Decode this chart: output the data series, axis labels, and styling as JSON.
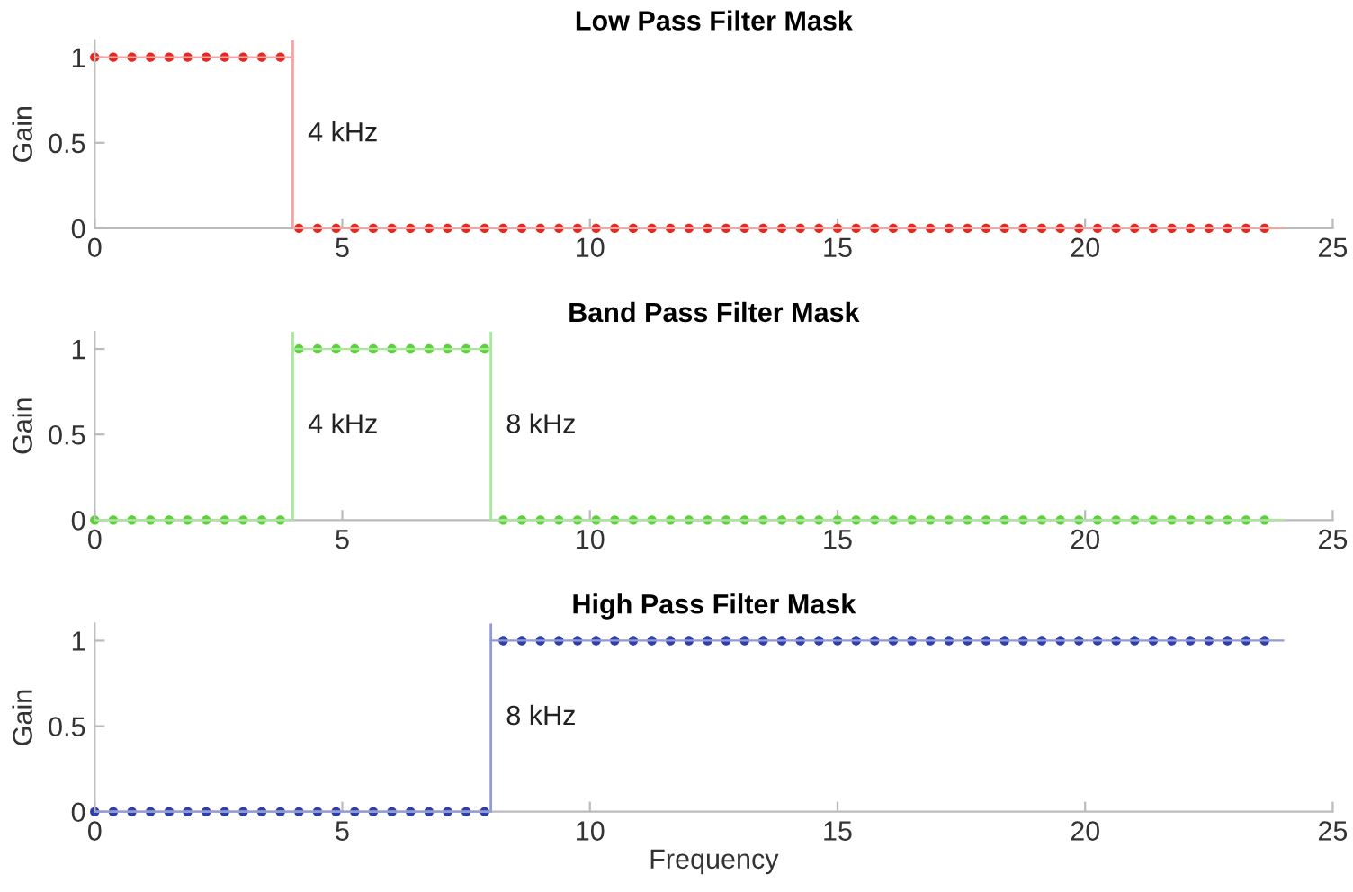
{
  "chart_data": [
    {
      "type": "scatter",
      "title": "Low Pass Filter Mask",
      "ylabel": "Gain",
      "xlim": [
        0,
        25
      ],
      "xticks": [
        0,
        5,
        10,
        15,
        20,
        25
      ],
      "ylim": [
        0,
        1.1
      ],
      "yticks": [
        0,
        0.5,
        1
      ],
      "grid": false,
      "legend": false,
      "x": [
        0,
        0.375,
        0.75,
        1.125,
        1.5,
        1.875,
        2.25,
        2.625,
        3,
        3.375,
        3.75,
        4.125,
        4.5,
        4.875,
        5.25,
        5.625,
        6,
        6.375,
        6.75,
        7.125,
        7.5,
        7.875,
        8.25,
        8.625,
        9,
        9.375,
        9.75,
        10.125,
        10.5,
        10.875,
        11.25,
        11.625,
        12,
        12.375,
        12.75,
        13.125,
        13.5,
        13.875,
        14.25,
        14.625,
        15,
        15.375,
        15.75,
        16.125,
        16.5,
        16.875,
        17.25,
        17.625,
        18,
        18.375,
        18.75,
        19.125,
        19.5,
        19.875,
        20.25,
        20.625,
        21,
        21.375,
        21.75,
        22.125,
        22.5,
        22.875,
        23.25,
        23.625
      ],
      "series": [
        {
          "type": "line",
          "color": "#f5a3a3",
          "x": [
            0,
            4
          ],
          "values": [
            1,
            1
          ]
        },
        {
          "type": "line",
          "color": "#f5a3a3",
          "x": [
            4,
            24
          ],
          "values": [
            0,
            0
          ]
        },
        {
          "color": "#e8281e",
          "marker": "circle",
          "values": [
            1,
            1,
            1,
            1,
            1,
            1,
            1,
            1,
            1,
            1,
            1,
            0,
            0,
            0,
            0,
            0,
            0,
            0,
            0,
            0,
            0,
            0,
            0,
            0,
            0,
            0,
            0,
            0,
            0,
            0,
            0,
            0,
            0,
            0,
            0,
            0,
            0,
            0,
            0,
            0,
            0,
            0,
            0,
            0,
            0,
            0,
            0,
            0,
            0,
            0,
            0,
            0,
            0,
            0,
            0,
            0,
            0,
            0,
            0,
            0,
            0,
            0,
            0,
            0
          ]
        }
      ],
      "ref_lines": [
        {
          "axis": "x",
          "value": 4,
          "label": "4 kHz",
          "color": "#f5a3a3"
        }
      ]
    },
    {
      "type": "scatter",
      "title": "Band Pass Filter Mask",
      "ylabel": "Gain",
      "xlim": [
        0,
        25
      ],
      "xticks": [
        0,
        5,
        10,
        15,
        20,
        25
      ],
      "ylim": [
        0,
        1.1
      ],
      "yticks": [
        0,
        0.5,
        1
      ],
      "grid": false,
      "legend": false,
      "x": [
        0,
        0.375,
        0.75,
        1.125,
        1.5,
        1.875,
        2.25,
        2.625,
        3,
        3.375,
        3.75,
        4.125,
        4.5,
        4.875,
        5.25,
        5.625,
        6,
        6.375,
        6.75,
        7.125,
        7.5,
        7.875,
        8.25,
        8.625,
        9,
        9.375,
        9.75,
        10.125,
        10.5,
        10.875,
        11.25,
        11.625,
        12,
        12.375,
        12.75,
        13.125,
        13.5,
        13.875,
        14.25,
        14.625,
        15,
        15.375,
        15.75,
        16.125,
        16.5,
        16.875,
        17.25,
        17.625,
        18,
        18.375,
        18.75,
        19.125,
        19.5,
        19.875,
        20.25,
        20.625,
        21,
        21.375,
        21.75,
        22.125,
        22.5,
        22.875,
        23.25,
        23.625
      ],
      "series": [
        {
          "type": "line",
          "color": "#a8e89a",
          "x": [
            0,
            4
          ],
          "values": [
            0,
            0
          ]
        },
        {
          "type": "line",
          "color": "#a8e89a",
          "x": [
            4,
            8
          ],
          "values": [
            1,
            1
          ]
        },
        {
          "type": "line",
          "color": "#a8e89a",
          "x": [
            8,
            24
          ],
          "values": [
            0,
            0
          ]
        },
        {
          "color": "#5cd13a",
          "marker": "circle",
          "values": [
            0,
            0,
            0,
            0,
            0,
            0,
            0,
            0,
            0,
            0,
            0,
            1,
            1,
            1,
            1,
            1,
            1,
            1,
            1,
            1,
            1,
            1,
            0,
            0,
            0,
            0,
            0,
            0,
            0,
            0,
            0,
            0,
            0,
            0,
            0,
            0,
            0,
            0,
            0,
            0,
            0,
            0,
            0,
            0,
            0,
            0,
            0,
            0,
            0,
            0,
            0,
            0,
            0,
            0,
            0,
            0,
            0,
            0,
            0,
            0,
            0,
            0,
            0,
            0
          ]
        }
      ],
      "ref_lines": [
        {
          "axis": "x",
          "value": 4,
          "label": "4 kHz",
          "color": "#a8e89a"
        },
        {
          "axis": "x",
          "value": 8,
          "label": "8 kHz",
          "color": "#a8e89a"
        }
      ]
    },
    {
      "type": "scatter",
      "title": "High Pass Filter Mask",
      "xlabel": "Frequency",
      "ylabel": "Gain",
      "xlim": [
        0,
        25
      ],
      "xticks": [
        0,
        5,
        10,
        15,
        20,
        25
      ],
      "ylim": [
        0,
        1.1
      ],
      "yticks": [
        0,
        0.5,
        1
      ],
      "grid": false,
      "legend": false,
      "x": [
        0,
        0.375,
        0.75,
        1.125,
        1.5,
        1.875,
        2.25,
        2.625,
        3,
        3.375,
        3.75,
        4.125,
        4.5,
        4.875,
        5.25,
        5.625,
        6,
        6.375,
        6.75,
        7.125,
        7.5,
        7.875,
        8.25,
        8.625,
        9,
        9.375,
        9.75,
        10.125,
        10.5,
        10.875,
        11.25,
        11.625,
        12,
        12.375,
        12.75,
        13.125,
        13.5,
        13.875,
        14.25,
        14.625,
        15,
        15.375,
        15.75,
        16.125,
        16.5,
        16.875,
        17.25,
        17.625,
        18,
        18.375,
        18.75,
        19.125,
        19.5,
        19.875,
        20.25,
        20.625,
        21,
        21.375,
        21.75,
        22.125,
        22.5,
        22.875,
        23.25,
        23.625
      ],
      "series": [
        {
          "type": "line",
          "color": "#8f9ad6",
          "x": [
            0,
            8
          ],
          "values": [
            0,
            0
          ]
        },
        {
          "type": "line",
          "color": "#8f9ad6",
          "x": [
            8,
            24
          ],
          "values": [
            1,
            1
          ]
        },
        {
          "color": "#2e3fa8",
          "marker": "circle",
          "values": [
            0,
            0,
            0,
            0,
            0,
            0,
            0,
            0,
            0,
            0,
            0,
            0,
            0,
            0,
            0,
            0,
            0,
            0,
            0,
            0,
            0,
            0,
            1,
            1,
            1,
            1,
            1,
            1,
            1,
            1,
            1,
            1,
            1,
            1,
            1,
            1,
            1,
            1,
            1,
            1,
            1,
            1,
            1,
            1,
            1,
            1,
            1,
            1,
            1,
            1,
            1,
            1,
            1,
            1,
            1,
            1,
            1,
            1,
            1,
            1,
            1,
            1,
            1,
            1
          ]
        }
      ],
      "ref_lines": [
        {
          "axis": "x",
          "value": 8,
          "label": "8 kHz",
          "color": "#8f9ad6"
        }
      ]
    }
  ]
}
